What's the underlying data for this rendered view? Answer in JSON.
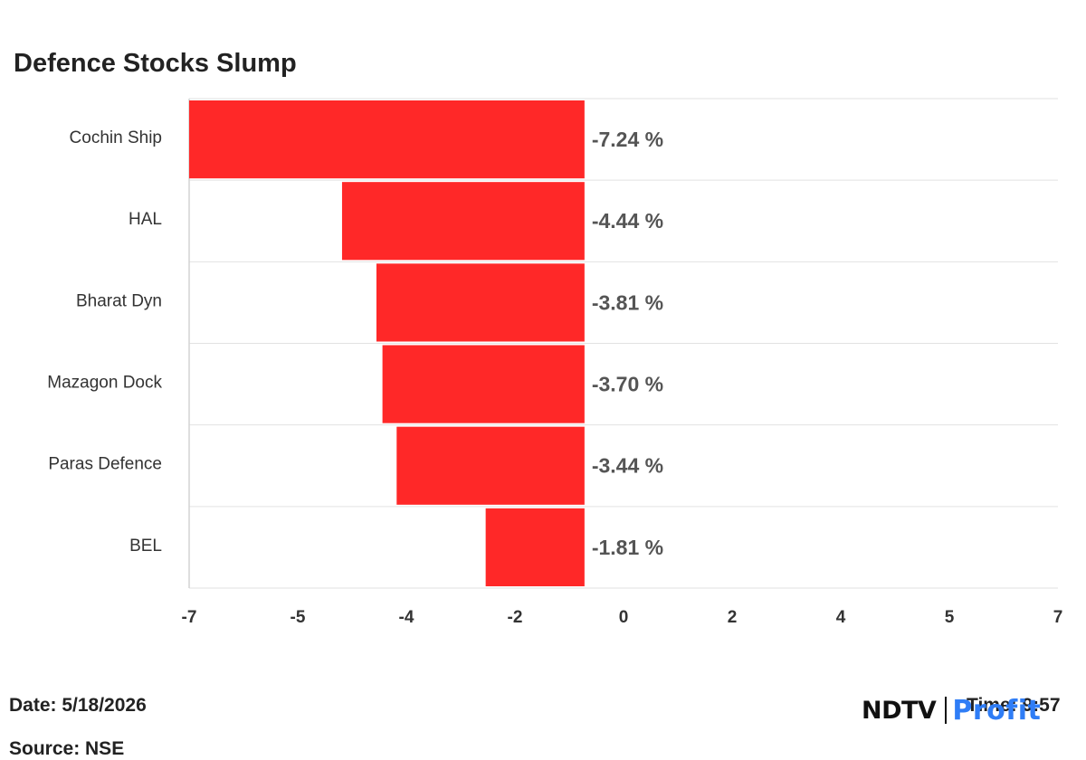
{
  "title": "Defence Stocks Slump",
  "footer": {
    "date": "Date: 5/18/2026",
    "source": "Source: NSE",
    "time": "Time: 9:57"
  },
  "brand": {
    "ndtv": "NDTV",
    "profit": "Profit"
  },
  "colors": {
    "bar": "#ff2828",
    "grid": "#e2e2e2",
    "axis": "#d4d4d4",
    "label": "#333333",
    "value_label": "#555555"
  },
  "chart_data": {
    "type": "bar",
    "orientation": "horizontal",
    "title": "Defence Stocks Slump",
    "categories": [
      "Cochin Ship",
      "HAL",
      "Bharat Dyn",
      "Mazagon Dock",
      "Paras Defence",
      "BEL"
    ],
    "values": [
      -7.24,
      -4.44,
      -3.81,
      -3.7,
      -3.44,
      -1.81
    ],
    "value_labels": [
      "-7.24 %",
      "-4.44 %",
      "-3.81 %",
      "-3.70 %",
      "-3.44 %",
      "-1.81 %"
    ],
    "x_ticks": [
      "-7",
      "-5",
      "-4",
      "-2",
      "0",
      "2",
      "4",
      "5",
      "7"
    ],
    "xlim": [
      -7.24,
      8.67
    ],
    "grid": true,
    "legend": "none"
  }
}
